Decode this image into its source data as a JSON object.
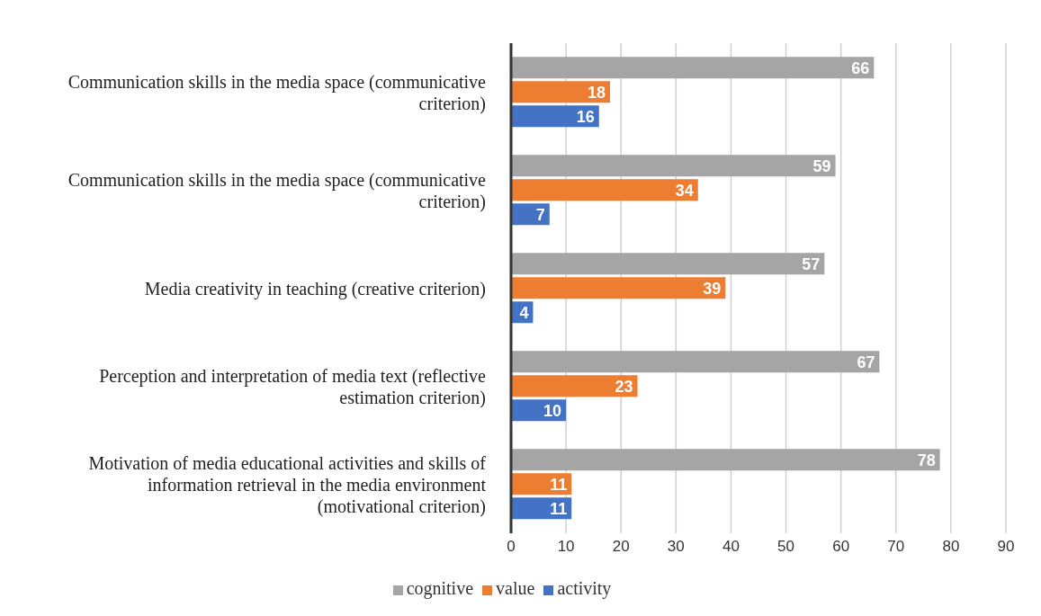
{
  "chart_data": {
    "type": "bar",
    "orientation": "horizontal",
    "categories": [
      "Communication skills in the media space (communicative criterion)",
      "Communication skills in the media space (communicative criterion)",
      "Media creativity in teaching (creative criterion)",
      "Perception and interpretation of media text (reflective estimation criterion)",
      "Motivation of media educational activities and skills of information retrieval in the media environment (motivational criterion)"
    ],
    "series": [
      {
        "name": "cognitive",
        "color": "#a5a5a5",
        "values": [
          66,
          59,
          57,
          67,
          78
        ]
      },
      {
        "name": "value",
        "color": "#ed7d31",
        "values": [
          18,
          34,
          39,
          23,
          11
        ]
      },
      {
        "name": "activity",
        "color": "#4472c4",
        "values": [
          16,
          7,
          4,
          10,
          11
        ]
      }
    ],
    "xlim": [
      0,
      90
    ],
    "xticks": [
      0,
      10,
      20,
      30,
      40,
      50,
      60,
      70,
      80,
      90
    ],
    "grid": "x",
    "legend": "bottom",
    "data_labels": true
  }
}
